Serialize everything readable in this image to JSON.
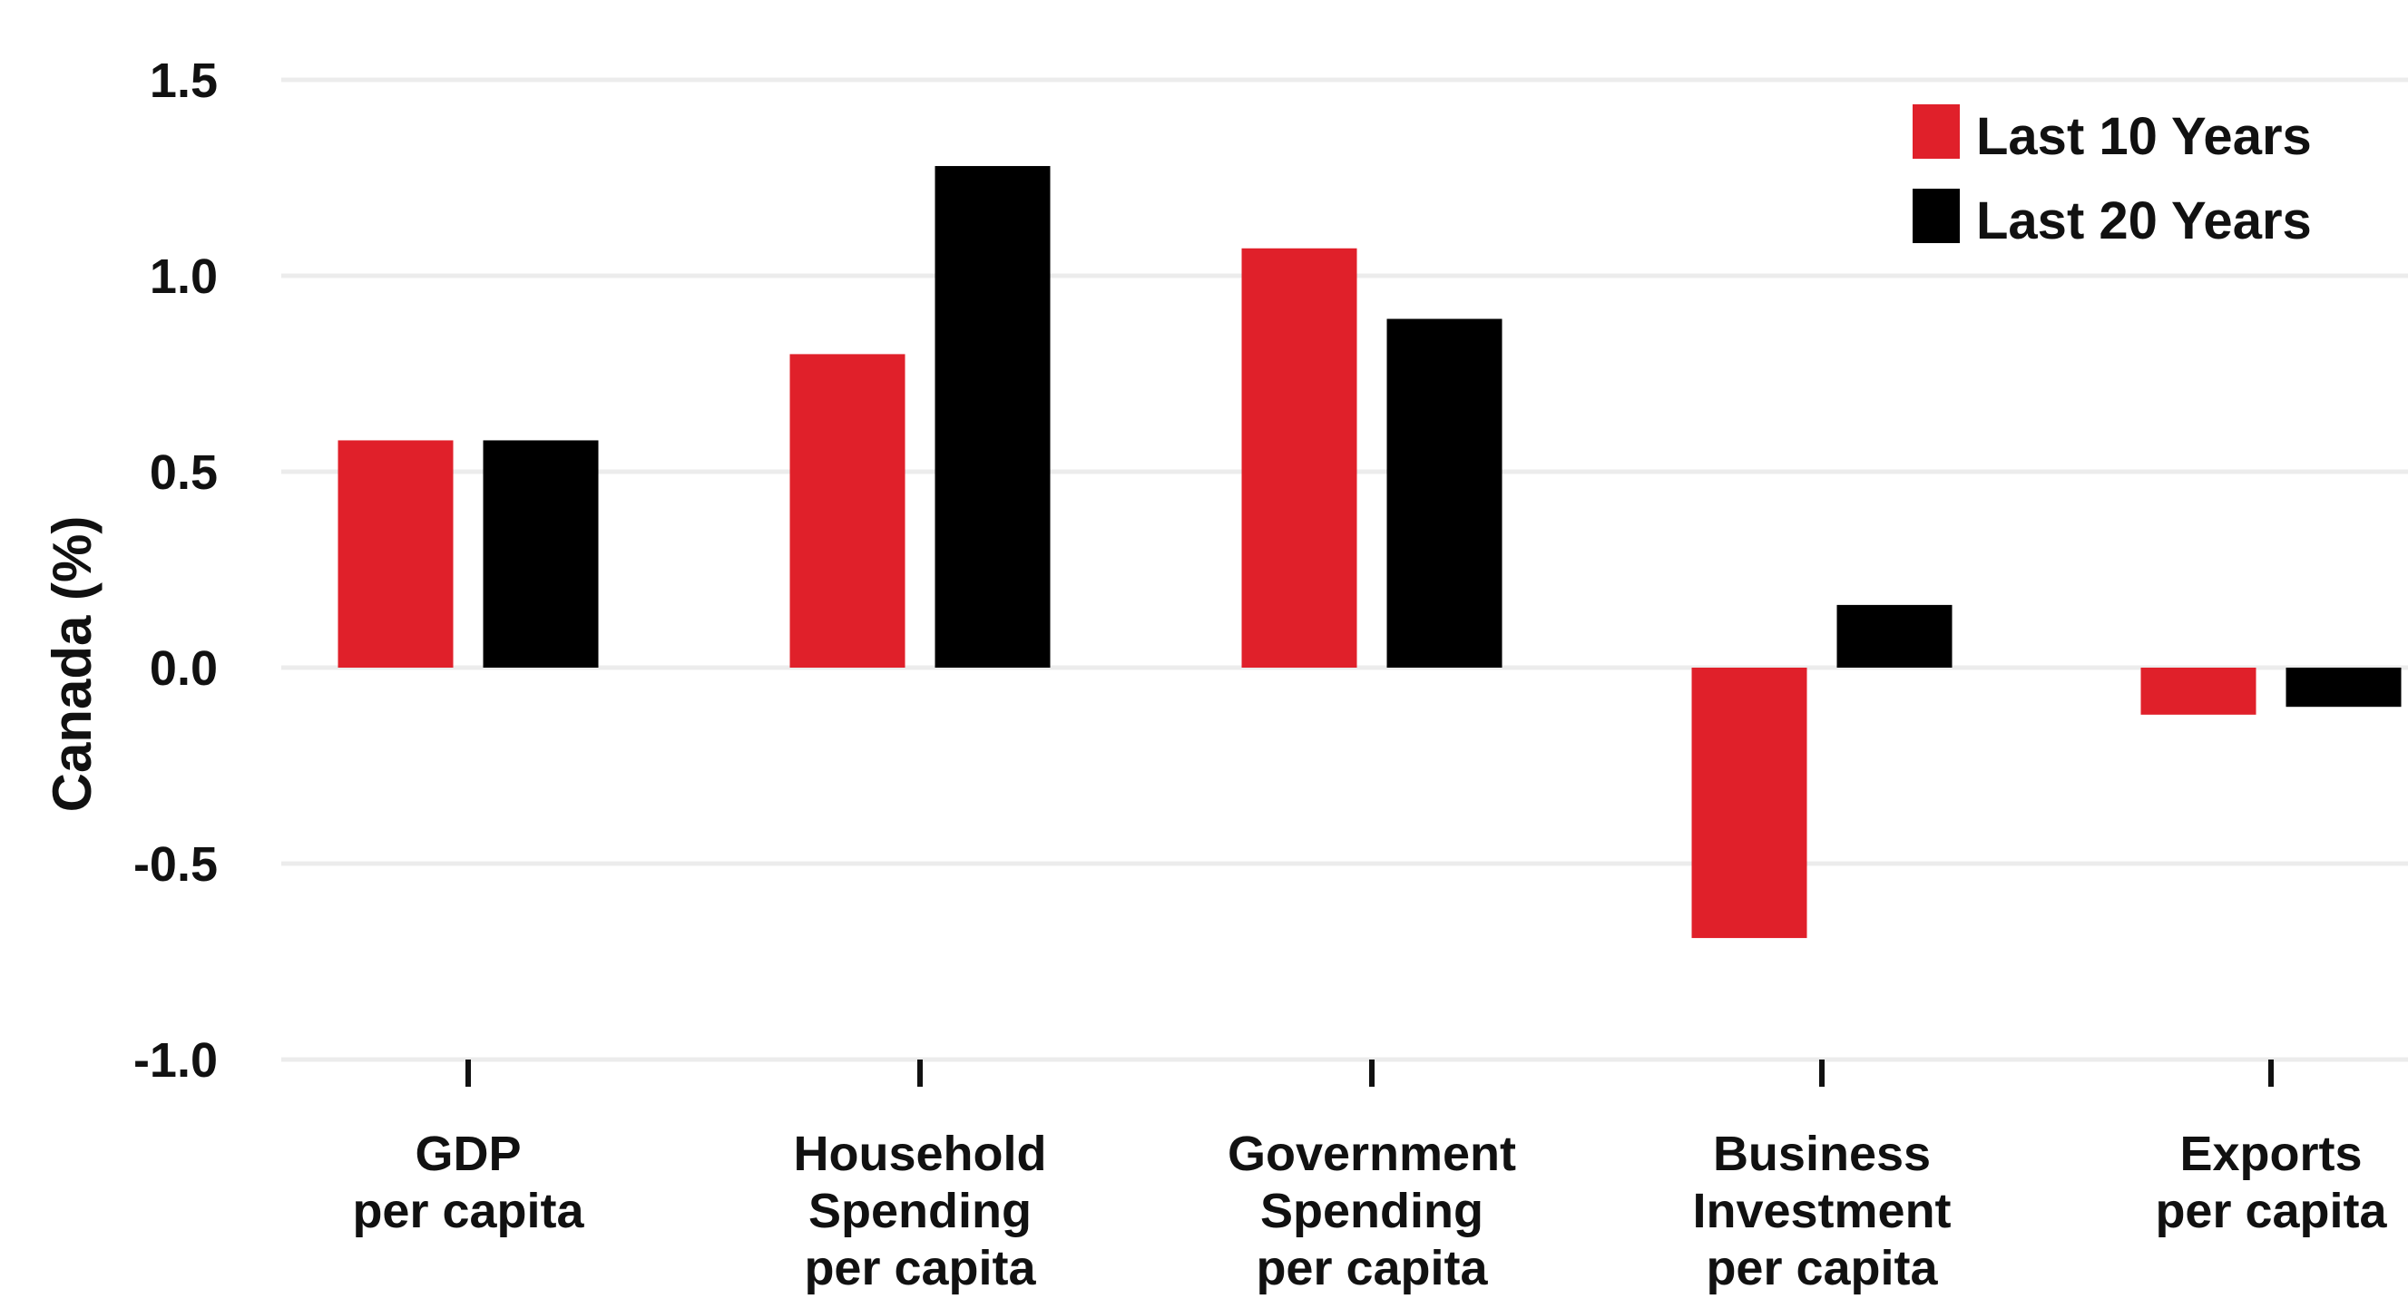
{
  "chart_data": {
    "type": "bar",
    "title": "",
    "xlabel": "",
    "ylabel": "Canada (%)",
    "ylim": [
      -1.0,
      1.5
    ],
    "yticks": [
      "1.5",
      "1.0",
      "0.5",
      "0.0",
      "-0.5",
      "-1.0"
    ],
    "ytick_values": [
      1.5,
      1.0,
      0.5,
      0.0,
      -0.5,
      -1.0
    ],
    "grid": true,
    "legend_position": "top-right",
    "categories": [
      [
        "GDP",
        "per capita"
      ],
      [
        "Household",
        "Spending",
        "per capita"
      ],
      [
        "Government",
        "Spending",
        "per capita"
      ],
      [
        "Business",
        "Investment",
        "per capita"
      ],
      [
        "Exports",
        "per capita"
      ]
    ],
    "series": [
      {
        "name": "Last 10 Years",
        "color": "#e0202a",
        "values": [
          0.58,
          0.8,
          1.07,
          -0.69,
          -0.12
        ]
      },
      {
        "name": "Last 20 Years",
        "color": "#000000",
        "values": [
          0.58,
          1.28,
          0.89,
          0.16,
          -0.1
        ]
      }
    ]
  }
}
